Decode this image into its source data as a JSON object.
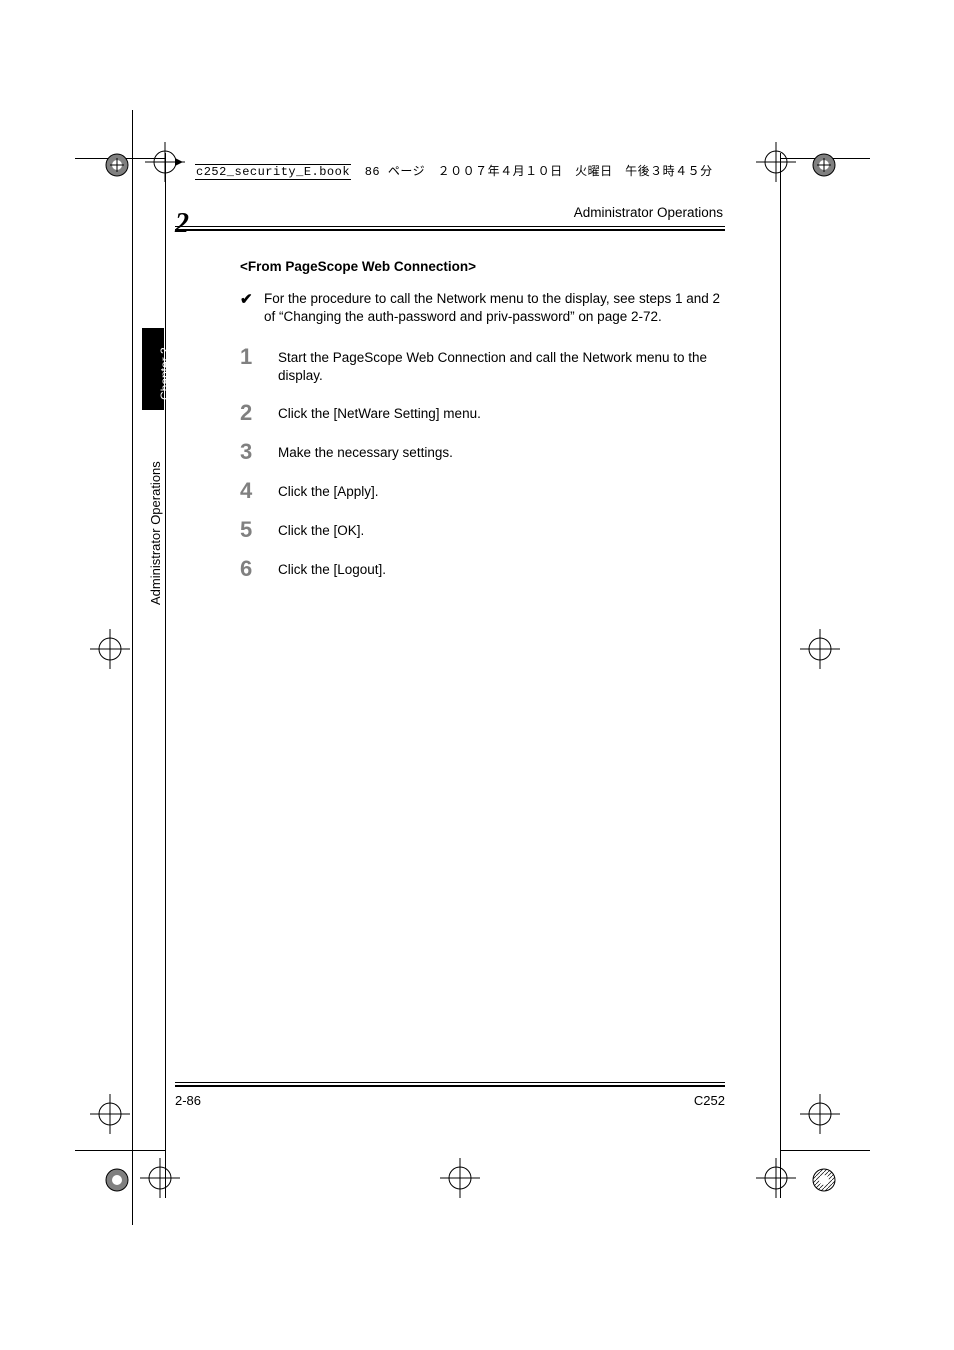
{
  "meta": {
    "book_name": "c252_security_E.book",
    "page_info": "86 ページ　２００７年４月１０日　火曜日　午後３時４５分"
  },
  "header": {
    "title": "Administrator Operations",
    "chapter_number": "2"
  },
  "sidebar": {
    "tab_label": "Chapter 2",
    "side_label": "Administrator Operations"
  },
  "content": {
    "section_title": "<From PageScope Web Connection>",
    "check_note": "For the procedure to call the Network menu to the display, see steps 1 and 2 of “Changing the auth-password and priv-password” on page 2-72.",
    "steps": [
      {
        "num": "1",
        "text": "Start the PageScope Web Connection and call the Network menu to the display."
      },
      {
        "num": "2",
        "text": "Click the [NetWare Setting] menu."
      },
      {
        "num": "3",
        "text": "Make the necessary settings."
      },
      {
        "num": "4",
        "text": "Click the [Apply]."
      },
      {
        "num": "5",
        "text": "Click the [OK]."
      },
      {
        "num": "6",
        "text": "Click the [Logout]."
      }
    ]
  },
  "footer": {
    "page_num": "2-86",
    "model": "C252"
  },
  "colors": {
    "text": "#000000",
    "step_number": "#808080",
    "background": "#ffffff"
  },
  "crop_marks": {
    "stroke": "#000000",
    "reg_radius": 11
  }
}
